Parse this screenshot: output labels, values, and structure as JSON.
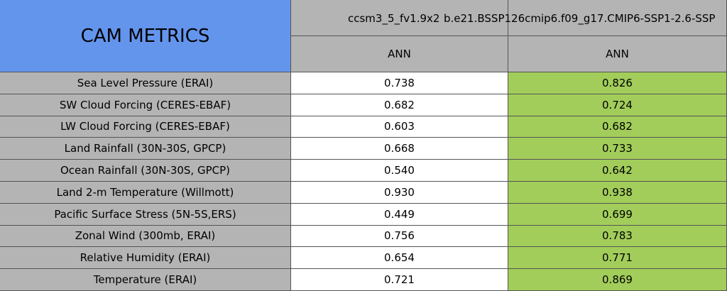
{
  "header": {
    "title": "CAM METRICS"
  },
  "columns": [
    {
      "case": "ccsm3_5_fv1.9x2",
      "period": "ANN"
    },
    {
      "case": "b.e21.BSSP126cmip6.f09_g17.CMIP6-SSP1-2.6-SSP",
      "period": "ANN"
    }
  ],
  "rows": [
    {
      "label": "Sea Level Pressure (ERAI)",
      "values": [
        "0.738",
        "0.826"
      ]
    },
    {
      "label": "SW Cloud Forcing (CERES-EBAF)",
      "values": [
        "0.682",
        "0.724"
      ]
    },
    {
      "label": "LW Cloud Forcing (CERES-EBAF)",
      "values": [
        "0.603",
        "0.682"
      ]
    },
    {
      "label": "Land Rainfall (30N-30S, GPCP)",
      "values": [
        "0.668",
        "0.733"
      ]
    },
    {
      "label": "Ocean Rainfall (30N-30S, GPCP)",
      "values": [
        "0.540",
        "0.642"
      ]
    },
    {
      "label": "Land 2-m Temperature (Willmott)",
      "values": [
        "0.930",
        "0.938"
      ]
    },
    {
      "label": "Pacific Surface Stress (5N-5S,ERS)",
      "values": [
        "0.449",
        "0.699"
      ]
    },
    {
      "label": "Zonal Wind (300mb, ERAI)",
      "values": [
        "0.756",
        "0.783"
      ]
    },
    {
      "label": "Relative Humidity (ERAI)",
      "values": [
        "0.654",
        "0.771"
      ]
    },
    {
      "label": "Temperature (ERAI)",
      "values": [
        "0.721",
        "0.869"
      ]
    }
  ]
}
